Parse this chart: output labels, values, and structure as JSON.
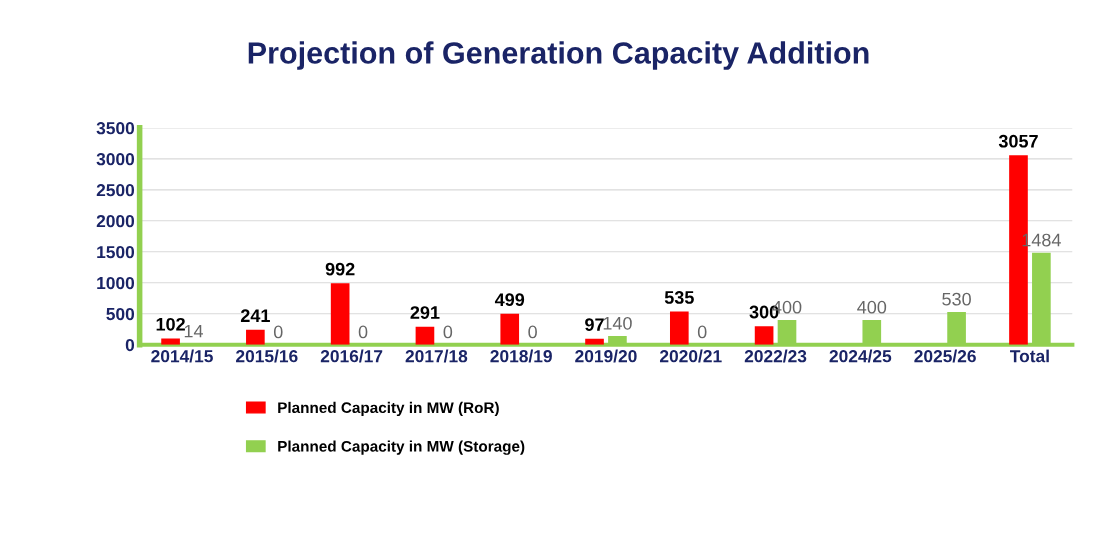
{
  "chart_data": {
    "type": "bar",
    "title": "Projection of Generation Capacity Addition",
    "categories": [
      "2014/15",
      "2015/16",
      "2016/17",
      "2017/18",
      "2018/19",
      "2019/20",
      "2020/21",
      "2022/23",
      "2024/25",
      "2025/26",
      "Total"
    ],
    "series": [
      {
        "name": "Planned Capacity in MW (RoR)",
        "color": "#ff0000",
        "values": [
          102,
          241,
          992,
          291,
          499,
          97,
          535,
          300,
          null,
          null,
          3057
        ]
      },
      {
        "name": "Planned Capacity in MW (Storage)",
        "color": "#92d050",
        "values": [
          14,
          0,
          0,
          0,
          0,
          140,
          0,
          400,
          400,
          530,
          1484
        ]
      }
    ],
    "ylim": [
      0,
      3500
    ],
    "yticks": [
      0,
      500,
      1000,
      1500,
      2000,
      2500,
      3000,
      3500
    ],
    "grid": "y",
    "legend": "bottom",
    "data_labels": true
  }
}
